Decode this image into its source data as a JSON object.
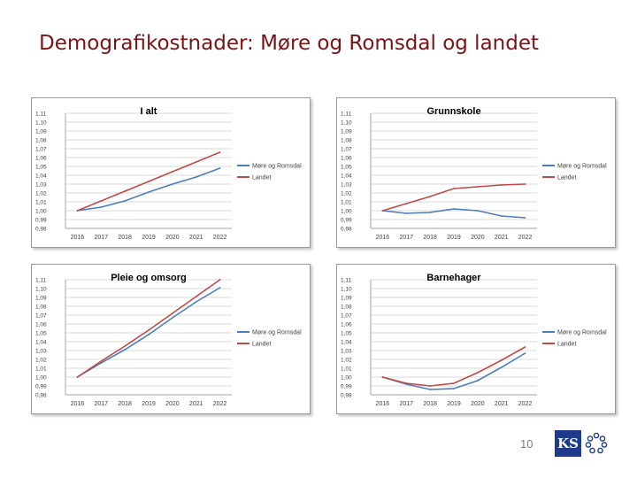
{
  "slide": {
    "title": "Demografikostnader: Møre og Romsdal og landet",
    "page_number": "10"
  },
  "logo": {
    "text": "KS"
  },
  "colors": {
    "title": "#7a1416",
    "series_mr": "#4a7ebb",
    "series_landet": "#be4b48"
  },
  "chart_data": [
    {
      "type": "line",
      "title": "I alt",
      "x": [
        "2016",
        "2017",
        "2018",
        "2019",
        "2020",
        "2021",
        "2022"
      ],
      "yticks": [
        "1,11",
        "1,10",
        "1,09",
        "1,08",
        "1,07",
        "1,06",
        "1,05",
        "1,04",
        "1,03",
        "1,02",
        "1,01",
        "1,00",
        "0,99",
        "0,98"
      ],
      "ylim": [
        0.98,
        1.11
      ],
      "grid": true,
      "legend_position": "right",
      "series": [
        {
          "name": "Møre og Romsdal",
          "color": "#4a7ebb",
          "values": [
            1.0,
            1.004,
            1.011,
            1.021,
            1.03,
            1.038,
            1.048
          ]
        },
        {
          "name": "Landet",
          "color": "#be4b48",
          "values": [
            1.0,
            1.011,
            1.022,
            1.033,
            1.044,
            1.055,
            1.066
          ]
        }
      ]
    },
    {
      "type": "line",
      "title": "Grunnskole",
      "x": [
        "2016",
        "2017",
        "2018",
        "2019",
        "2020",
        "2021",
        "2022"
      ],
      "yticks": [
        "1,11",
        "1,10",
        "1,09",
        "1,08",
        "1,07",
        "1,06",
        "1,05",
        "1,04",
        "1,03",
        "1,02",
        "1,01",
        "1,00",
        "0,99",
        "0,98"
      ],
      "ylim": [
        0.98,
        1.11
      ],
      "grid": true,
      "legend_position": "right",
      "series": [
        {
          "name": "Møre og Romsdal",
          "color": "#4a7ebb",
          "values": [
            1.0,
            0.997,
            0.998,
            1.002,
            1.0,
            0.994,
            0.992
          ]
        },
        {
          "name": "Landet",
          "color": "#be4b48",
          "values": [
            1.0,
            1.008,
            1.016,
            1.025,
            1.027,
            1.029,
            1.03
          ]
        }
      ]
    },
    {
      "type": "line",
      "title": "Pleie og omsorg",
      "x": [
        "2016",
        "2017",
        "2018",
        "2019",
        "2020",
        "2021",
        "2022"
      ],
      "yticks": [
        "1,11",
        "1,10",
        "1,09",
        "1,08",
        "1,07",
        "1,06",
        "1,05",
        "1,04",
        "1,03",
        "1,02",
        "1,01",
        "1,00",
        "0,99",
        "0,98"
      ],
      "ylim": [
        0.98,
        1.11
      ],
      "grid": true,
      "legend_position": "right",
      "series": [
        {
          "name": "Møre og Romsdal",
          "color": "#4a7ebb",
          "values": [
            1.0,
            1.016,
            1.031,
            1.048,
            1.067,
            1.085,
            1.101
          ]
        },
        {
          "name": "Landet",
          "color": "#be4b48",
          "values": [
            1.0,
            1.018,
            1.035,
            1.053,
            1.072,
            1.091,
            1.11
          ]
        }
      ]
    },
    {
      "type": "line",
      "title": "Barnehager",
      "x": [
        "2016",
        "2017",
        "2018",
        "2019",
        "2020",
        "2021",
        "2022"
      ],
      "yticks": [
        "1,11",
        "1,10",
        "1,09",
        "1,08",
        "1,07",
        "1,06",
        "1,05",
        "1,04",
        "1,03",
        "1,02",
        "1,01",
        "1,00",
        "0,99",
        "0,98"
      ],
      "ylim": [
        0.98,
        1.11
      ],
      "grid": true,
      "legend_position": "right",
      "series": [
        {
          "name": "Møre og Romsdal",
          "color": "#4a7ebb",
          "values": [
            1.0,
            0.992,
            0.986,
            0.987,
            0.996,
            1.011,
            1.027
          ]
        },
        {
          "name": "Landet",
          "color": "#be4b48",
          "values": [
            1.0,
            0.993,
            0.99,
            0.993,
            1.005,
            1.019,
            1.034
          ]
        }
      ]
    }
  ]
}
